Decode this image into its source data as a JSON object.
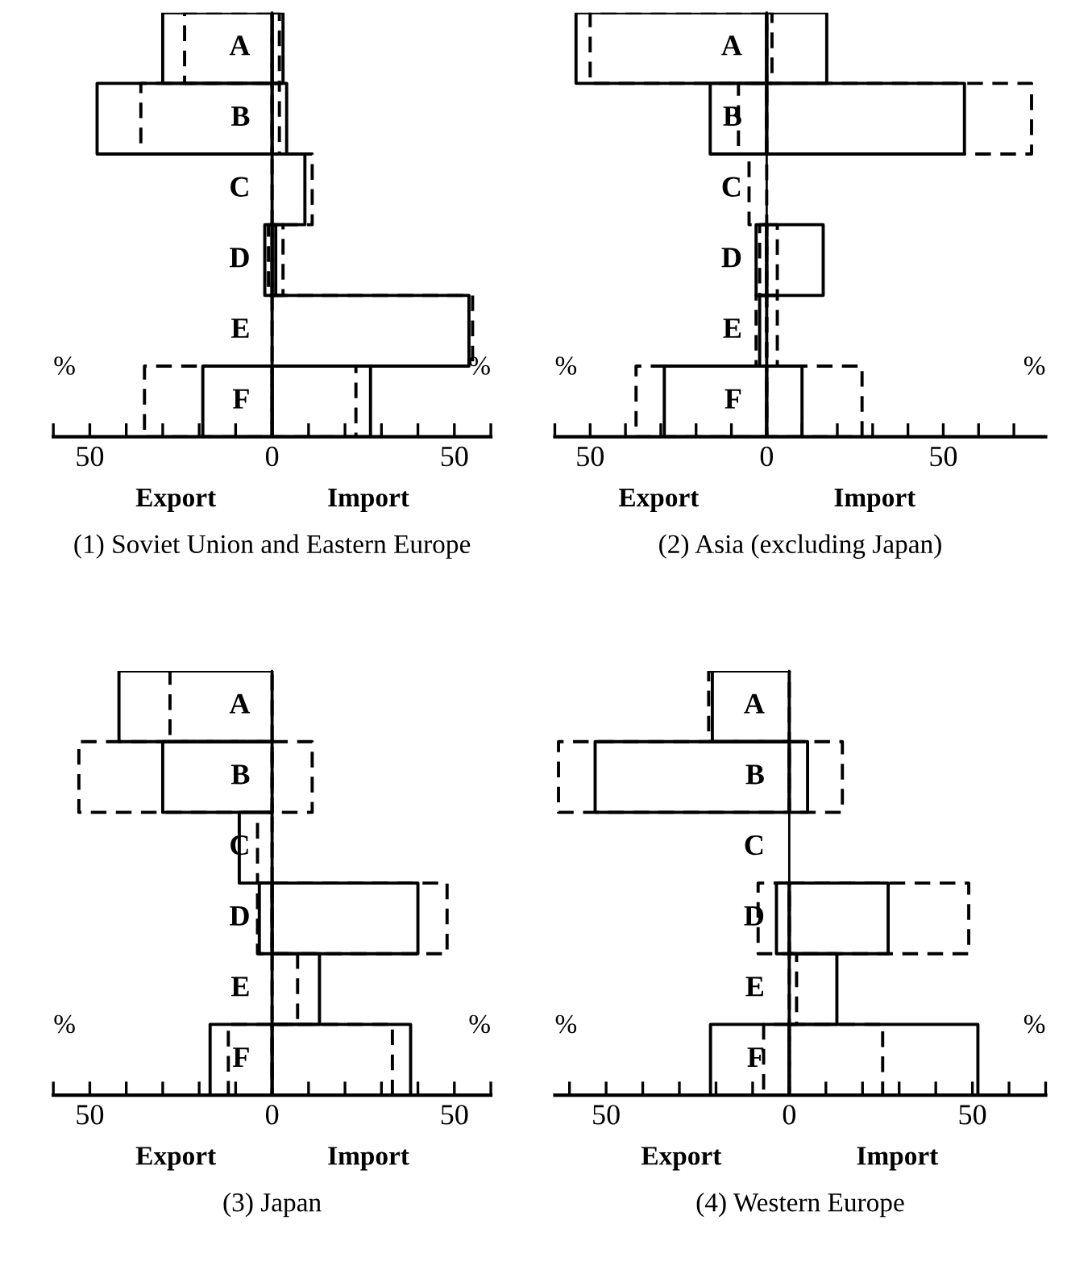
{
  "chart_data": [
    {
      "type": "bar",
      "orientation": "horizontal",
      "title": "(1) Soviet Union and Eastern Europe",
      "categories": [
        "A",
        "B",
        "C",
        "D",
        "E",
        "F"
      ],
      "series": [
        {
          "color": "#000000",
          "line_style": "dashed",
          "values": [
            -24,
            -36,
            null,
            -1,
            null,
            -35
          ]
        },
        {
          "color": "#000000",
          "line_style": "dashed",
          "values": [
            2,
            2,
            11,
            3,
            55,
            23
          ]
        },
        {
          "color": "#000000",
          "line_style": "solid",
          "values": [
            -30,
            -48,
            null,
            -2,
            null,
            -19
          ]
        },
        {
          "color": "#000000",
          "line_style": "solid",
          "values": [
            3,
            4,
            9,
            1,
            54,
            27
          ]
        }
      ],
      "xlim": [
        -60,
        60
      ],
      "xticks": [
        {
          "value": -60,
          "label": null
        },
        {
          "value": -50,
          "label": "50"
        },
        {
          "value": -40,
          "label": null
        },
        {
          "value": -30,
          "label": null
        },
        {
          "value": -20,
          "label": null
        },
        {
          "value": -10,
          "label": null
        },
        0,
        {
          "value": 10,
          "label": null
        },
        {
          "value": 20,
          "label": null
        },
        {
          "value": 30,
          "label": null
        },
        {
          "value": 40,
          "label": null
        },
        50,
        {
          "value": 60,
          "label": null
        }
      ],
      "annotations": [
        "%",
        "%",
        "Export",
        "Import"
      ]
    },
    {
      "type": "bar",
      "orientation": "horizontal",
      "title": "(2) Asia (excluding Japan)",
      "categories": [
        "A",
        "B",
        "C",
        "D",
        "E",
        "F"
      ],
      "series": [
        {
          "color": "#000000",
          "line_style": "dashed",
          "values": [
            -50,
            -8,
            -5,
            -2,
            -3,
            -37
          ]
        },
        {
          "color": "#000000",
          "line_style": "dashed",
          "values": [
            1.5,
            75,
            null,
            3,
            3,
            27
          ]
        },
        {
          "color": "#000000",
          "line_style": "solid",
          "values": [
            -54,
            -16,
            null,
            -3,
            -2,
            -29
          ]
        },
        {
          "color": "#000000",
          "line_style": "solid",
          "values": [
            17,
            56,
            null,
            16,
            null,
            10
          ]
        }
      ],
      "xlim": [
        -60,
        79
      ],
      "xticks": [
        {
          "value": -60,
          "label": null
        },
        {
          "value": -50,
          "label": "50"
        },
        {
          "value": -40,
          "label": null
        },
        {
          "value": -30,
          "label": null
        },
        {
          "value": -20,
          "label": null
        },
        {
          "value": -10,
          "label": null
        },
        0,
        {
          "value": 10,
          "label": null
        },
        {
          "value": 20,
          "label": null
        },
        {
          "value": 30,
          "label": null
        },
        {
          "value": 40,
          "label": null
        },
        50,
        {
          "value": 60,
          "label": null
        },
        {
          "value": 70,
          "label": null
        }
      ],
      "annotations": [
        "%",
        "%",
        "Export",
        "Import"
      ]
    },
    {
      "type": "bar",
      "orientation": "horizontal",
      "title": "(3) Japan",
      "categories": [
        "A",
        "B",
        "C",
        "D",
        "E",
        "F"
      ],
      "series": [
        {
          "color": "#000000",
          "line_style": "dashed",
          "values": [
            -28,
            -53,
            -4,
            -4,
            null,
            -12
          ]
        },
        {
          "color": "#000000",
          "line_style": "dashed",
          "values": [
            null,
            11,
            null,
            48,
            7,
            33
          ]
        },
        {
          "color": "#000000",
          "line_style": "solid",
          "values": [
            -42,
            -30,
            -9,
            -3.5,
            null,
            -17
          ]
        },
        {
          "color": "#000000",
          "line_style": "solid",
          "values": [
            null,
            null,
            null,
            40,
            13,
            38
          ]
        }
      ],
      "xlim": [
        -60,
        60
      ],
      "xticks": [
        {
          "value": -60,
          "label": null
        },
        {
          "value": -50,
          "label": "50"
        },
        {
          "value": -40,
          "label": null
        },
        {
          "value": -30,
          "label": null
        },
        {
          "value": -20,
          "label": null
        },
        {
          "value": -10,
          "label": null
        },
        0,
        {
          "value": 10,
          "label": null
        },
        {
          "value": 20,
          "label": null
        },
        {
          "value": 30,
          "label": null
        },
        {
          "value": 40,
          "label": null
        },
        50,
        {
          "value": 60,
          "label": null
        }
      ],
      "annotations": [
        "%",
        "%",
        "Export",
        "Import"
      ]
    },
    {
      "type": "bar",
      "orientation": "horizontal",
      "title": "(4) Western Europe",
      "categories": [
        "A",
        "B",
        "C",
        "D",
        "E",
        "F"
      ],
      "series": [
        {
          "color": "#000000",
          "line_style": "dashed",
          "values": [
            -22,
            -63,
            null,
            -8.5,
            null,
            -7
          ]
        },
        {
          "color": "#000000",
          "line_style": "dashed",
          "values": [
            null,
            14.5,
            null,
            49,
            2,
            25.5
          ]
        },
        {
          "color": "#000000",
          "line_style": "solid",
          "values": [
            -21,
            -53,
            null,
            -3.5,
            null,
            -21.5
          ]
        },
        {
          "color": "#000000",
          "line_style": "solid",
          "values": [
            null,
            5,
            null,
            27,
            13,
            51.5
          ]
        }
      ],
      "xlim": [
        -64,
        70
      ],
      "xticks": [
        {
          "value": -60,
          "label": null
        },
        {
          "value": -50,
          "label": "50"
        },
        {
          "value": -40,
          "label": null
        },
        {
          "value": -30,
          "label": null
        },
        {
          "value": -20,
          "label": null
        },
        {
          "value": -10,
          "label": null
        },
        0,
        {
          "value": 10,
          "label": null
        },
        {
          "value": 20,
          "label": null
        },
        {
          "value": 30,
          "label": null
        },
        {
          "value": 40,
          "label": null
        },
        50,
        {
          "value": 60,
          "label": null
        },
        {
          "value": 70,
          "label": null
        }
      ],
      "annotations": [
        "%",
        "%",
        "Export",
        "Import"
      ]
    }
  ]
}
